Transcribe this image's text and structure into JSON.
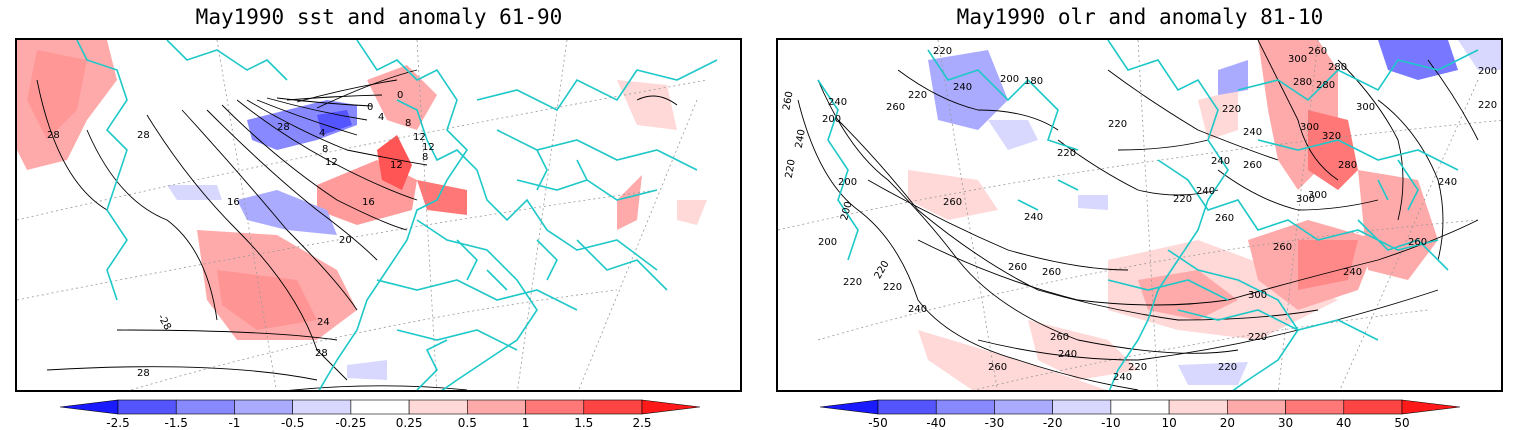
{
  "panels": [
    {
      "id": "sst",
      "title": "May1990 sst and anomaly 61-90",
      "colorbar": {
        "labels": [
          "-2.5",
          "-1.5",
          "-1",
          "-0.5",
          "-0.25",
          "0.25",
          "0.5",
          "1",
          "1.5",
          "2.5"
        ],
        "colors": [
          "#1a1aff",
          "#5555ff",
          "#8888ff",
          "#aaaaff",
          "#d8d8ff",
          "#ffffff",
          "#ffd8d8",
          "#ffaaaa",
          "#ff7777",
          "#ff4444",
          "#ff1a1a"
        ]
      },
      "contour_labels": [
        "28",
        "28",
        "28",
        "24",
        "20",
        "16",
        "16",
        "12",
        "12",
        "12",
        "8",
        "8",
        "4",
        "4",
        "0",
        "0",
        "-28",
        "28",
        "28",
        "12",
        "8"
      ]
    },
    {
      "id": "olr",
      "title": "May1990 olr and anomaly 81-10",
      "colorbar": {
        "labels": [
          "-50",
          "-40",
          "-30",
          "-20",
          "-10",
          "10",
          "20",
          "30",
          "40",
          "50"
        ],
        "colors": [
          "#1a1aff",
          "#5555ff",
          "#8888ff",
          "#aaaaff",
          "#d8d8ff",
          "#ffffff",
          "#ffd8d8",
          "#ffaaaa",
          "#ff7777",
          "#ff4444",
          "#ff1a1a"
        ]
      },
      "contour_labels": [
        "260",
        "240",
        "240",
        "220",
        "200",
        "220",
        "240",
        "260",
        "200",
        "180",
        "220",
        "200",
        "220",
        "220",
        "200",
        "260",
        "240",
        "300",
        "280",
        "260",
        "220",
        "240",
        "260",
        "300",
        "320",
        "280",
        "300",
        "240",
        "260",
        "220",
        "240",
        "240",
        "300",
        "260",
        "240",
        "260",
        "260",
        "220",
        "240",
        "260",
        "240",
        "220",
        "200",
        "220",
        "240",
        "280",
        "260",
        "220",
        "260",
        "300",
        "280",
        "220",
        "200",
        "220",
        "300",
        "220"
      ]
    }
  ],
  "colors": {
    "coastline": "#1ec8c8",
    "contour": "#000000",
    "grid": "#888888"
  }
}
